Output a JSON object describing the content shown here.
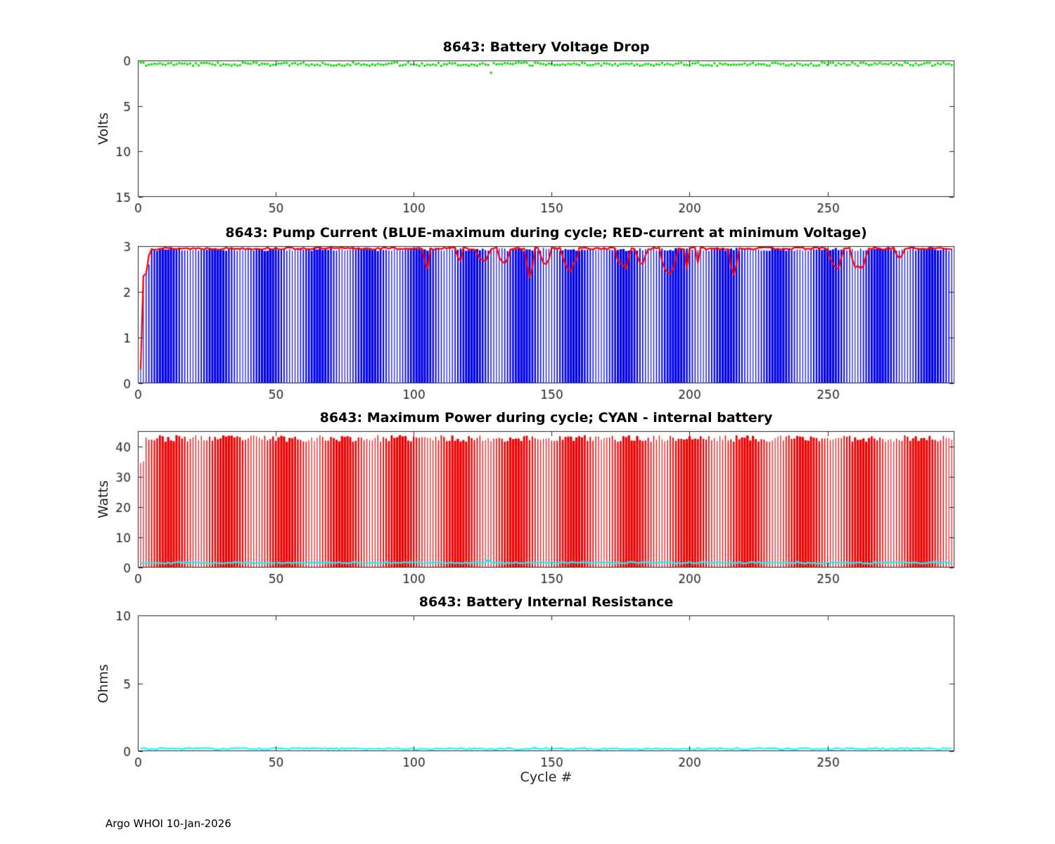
{
  "figure": {
    "footer": "Argo WHOI 10-Jan-2026",
    "background": "#ffffff"
  },
  "colors": {
    "axis": "#262626",
    "green": "#00e000",
    "blue": "#0000ee",
    "red": "#ff0000",
    "cyan": "#00ffff"
  },
  "chart_data": [
    {
      "type": "scatter",
      "title": "8643: Battery Voltage Drop",
      "ylabel": "Volts",
      "xlabel": "",
      "xlim": [
        0,
        296
      ],
      "ylim": [
        0,
        15
      ],
      "y_reversed": true,
      "xticks": [
        0,
        50,
        100,
        150,
        200,
        250
      ],
      "yticks": [
        0,
        5,
        10,
        15
      ],
      "grid": false,
      "series": [
        {
          "name": "battery-voltage-drop",
          "style": "markers",
          "color": "#00e000",
          "n": 295,
          "seed": 7,
          "base": 0.4,
          "noise": 0.18,
          "marker_size": 3,
          "anomalies": [
            {
              "x": 128,
              "y": 1.35
            }
          ]
        }
      ]
    },
    {
      "type": "bar",
      "title": "8643: Pump Current (BLUE-maximum during cycle; RED-current at minimum Voltage)",
      "ylabel": "",
      "xlabel": "",
      "xlim": [
        0,
        296
      ],
      "ylim": [
        0,
        3
      ],
      "y_reversed": false,
      "xticks": [
        0,
        50,
        100,
        150,
        200,
        250
      ],
      "yticks": [
        0,
        1,
        2,
        3
      ],
      "grid": false,
      "series": [
        {
          "name": "pump-max-current-during-cycle",
          "style": "stems",
          "color": "#0000ee",
          "n": 295,
          "seed": 11,
          "base": 2.93,
          "noise": 0.035,
          "band": 0.17,
          "ramp": [
            [
              1,
              0.5
            ],
            [
              2,
              2.35
            ],
            [
              3,
              2.45
            ],
            [
              4,
              2.6
            ]
          ]
        },
        {
          "name": "pump-current-at-minimum-voltage",
          "style": "line",
          "color": "#ff0000",
          "n": 295,
          "seed": 13,
          "base": 2.95,
          "noise": 0.025,
          "width": 2.2,
          "ramp": [
            [
              1,
              0.3
            ],
            [
              2,
              2.35
            ],
            [
              3,
              2.4
            ],
            [
              4,
              2.8
            ]
          ],
          "dips": {
            "start": 103,
            "prob": 0.12,
            "min_len": 3,
            "max_len": 9,
            "min_depth": 0.25,
            "max_depth": 0.7
          }
        }
      ]
    },
    {
      "type": "bar",
      "title": "8643: Maximum Power during cycle; CYAN - internal battery",
      "ylabel": "Watts",
      "xlabel": "",
      "xlim": [
        0,
        296
      ],
      "ylim": [
        0,
        45
      ],
      "y_reversed": false,
      "xticks": [
        0,
        50,
        100,
        150,
        200,
        250
      ],
      "yticks": [
        0,
        10,
        20,
        30,
        40
      ],
      "grid": false,
      "series": [
        {
          "name": "maximum-power-during-cycle",
          "style": "stems",
          "color": "#ee0000",
          "n": 295,
          "seed": 23,
          "base": 42.6,
          "noise": 1.1,
          "band": 0.15,
          "ramp": [
            [
              1,
              34.5
            ],
            [
              2,
              35
            ]
          ]
        },
        {
          "name": "internal-battery-power",
          "style": "line",
          "color": "#00ffff",
          "n": 295,
          "seed": 29,
          "base": 1.6,
          "noise": 0.3,
          "width": 2.2,
          "anomalies": [
            {
              "x": 127,
              "y": 2.9
            }
          ]
        }
      ]
    },
    {
      "type": "line",
      "title": "8643: Battery Internal Resistance",
      "ylabel": "Ohms",
      "xlabel": "Cycle #",
      "xlim": [
        0,
        296
      ],
      "ylim": [
        0,
        10
      ],
      "y_reversed": false,
      "xticks": [
        0,
        50,
        100,
        150,
        200,
        250
      ],
      "yticks": [
        0,
        5,
        10
      ],
      "grid": false,
      "series": [
        {
          "name": "battery-internal-resistance",
          "style": "line",
          "color": "#00ffff",
          "n": 295,
          "seed": 31,
          "base": 0.18,
          "noise": 0.07,
          "width": 2
        }
      ]
    }
  ]
}
